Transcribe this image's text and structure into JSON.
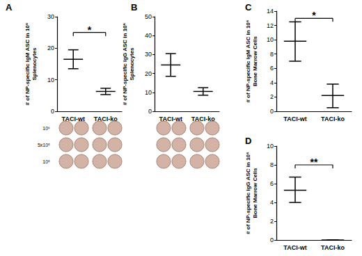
{
  "chart_data": [
    {
      "panel": "A",
      "type": "errorbar",
      "ylabel": "# of NP-specific IgM ASC in 10⁶\nSplenocytes",
      "categories": [
        "TACI-wt",
        "TACI-ko"
      ],
      "values": [
        16.5,
        6.3
      ],
      "error_low": [
        13.5,
        5.3
      ],
      "error_high": [
        19.5,
        7.3
      ],
      "ylim": [
        0,
        30
      ],
      "yticks": [
        0,
        10,
        20,
        30
      ],
      "grid": false,
      "color": "#000000",
      "annotations": [
        {
          "text": "*",
          "from": "TACI-wt",
          "to": "TACI-ko",
          "y": 25
        }
      ],
      "well_rows": [
        "10⁶",
        "5x10⁵",
        "10⁵"
      ]
    },
    {
      "panel": "B",
      "type": "errorbar",
      "ylabel": "# of NP-specific IgG ASC in 10⁶\nSplenocytes",
      "categories": [
        "TACI-wt",
        "TACI-ko"
      ],
      "values": [
        24.5,
        10.5
      ],
      "error_low": [
        18.5,
        8.5
      ],
      "error_high": [
        30.5,
        12.5
      ],
      "ylim": [
        0,
        50
      ],
      "yticks": [
        0,
        10,
        20,
        30,
        40,
        50
      ],
      "grid": false,
      "color": "#000000",
      "annotations": [],
      "well_rows": []
    },
    {
      "panel": "C",
      "type": "errorbar",
      "ylabel": "# of NP-specific IgM ASC in 10⁶\nBone Marrow Cells",
      "categories": [
        "TACI-wt",
        "TACI-ko"
      ],
      "values": [
        9.8,
        2.2
      ],
      "error_low": [
        7,
        0.5
      ],
      "error_high": [
        12.5,
        3.8
      ],
      "ylim": [
        0,
        14
      ],
      "yticks": [
        0,
        2,
        4,
        6,
        8,
        10,
        12,
        14
      ],
      "grid": false,
      "color": "#000000",
      "annotations": [
        {
          "text": "*",
          "from": "TACI-wt",
          "to": "TACI-ko",
          "y": 13
        }
      ],
      "well_rows": []
    },
    {
      "panel": "D",
      "type": "errorbar",
      "ylabel": "# of NP-specific IgG ASC in 10⁶\nBone Marrow Cells",
      "categories": [
        "TACI-wt",
        "TACI-ko"
      ],
      "values": [
        5.3,
        0
      ],
      "error_low": [
        4,
        0
      ],
      "error_high": [
        6.7,
        0
      ],
      "ylim": [
        0,
        10
      ],
      "yticks": [
        0,
        2,
        4,
        6,
        8,
        10
      ],
      "grid": false,
      "color": "#000000",
      "annotations": [
        {
          "text": "**",
          "from": "TACI-wt",
          "to": "TACI-ko",
          "y": 8
        }
      ],
      "well_rows": []
    }
  ]
}
